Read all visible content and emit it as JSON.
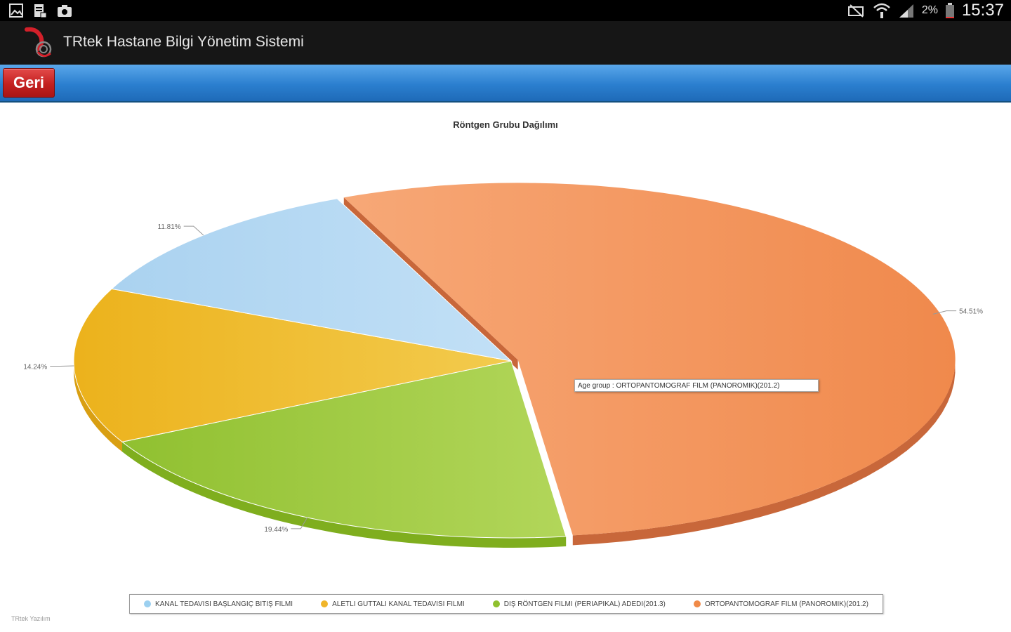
{
  "statusbar": {
    "time": "15:37",
    "battery": "2%",
    "icons": [
      "gallery-icon",
      "document-icon",
      "camera-icon",
      "mute-icon",
      "wifi-icon",
      "signal-icon",
      "battery-icon"
    ]
  },
  "app": {
    "title": "TRtek Hastane Bilgi Yönetim Sistemi",
    "logo": "trtek-logo"
  },
  "toolbar": {
    "back_label": "Geri",
    "back_color": "#c4201f",
    "bar_color": "#2b7fcf"
  },
  "tooltip": {
    "text": "Age group : ORTOPANTOMOGRAF FILM (PANOROMIK)(201.2)"
  },
  "credit": "TRtek Yazılım",
  "chart_data": {
    "type": "pie",
    "title": "Röntgen Grubu Dağılımı",
    "slices": [
      {
        "name": "ORTOPANTOMOGRAF FILM (PANOROMIK)(201.2)",
        "value": 54.51,
        "label": "54.51%",
        "color": "#f39a63",
        "exploded": true
      },
      {
        "name": "DIŞ RÖNTGEN FILMI (PERIAPIKAL) ADEDI(201.3)",
        "value": 19.44,
        "label": "19.44%",
        "color": "#9fc83c",
        "exploded": false
      },
      {
        "name": "ALETLI GUTTALI KANAL TEDAVISI FILMI",
        "value": 14.24,
        "label": "14.24%",
        "color": "#f0c13c",
        "exploded": false
      },
      {
        "name": "KANAL TEDAVISI BAŞLANGIÇ BITIŞ FILMI",
        "value": 11.81,
        "label": "11.81%",
        "color": "#b7dbf3",
        "exploded": false
      }
    ],
    "legend": [
      {
        "label": "KANAL TEDAVISI BAŞLANGIÇ BITIŞ FILMI",
        "color": "#9cd0f0"
      },
      {
        "label": "ALETLI GUTTALI KANAL TEDAVISI FILMI",
        "color": "#f0b52a"
      },
      {
        "label": "DIŞ RÖNTGEN FILMI (PERIAPIKAL) ADEDI(201.3)",
        "color": "#8fc02e"
      },
      {
        "label": "ORTOPANTOMOGRAF FILM (PANOROMIK)(201.2)",
        "color": "#f08a48"
      }
    ],
    "legend_position": "bottom",
    "style": "3d"
  }
}
